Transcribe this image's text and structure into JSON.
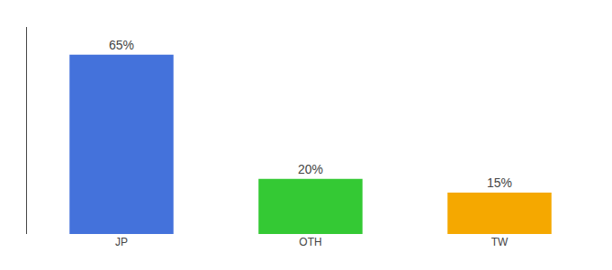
{
  "chart_data": {
    "type": "bar",
    "categories": [
      "JP",
      "OTH",
      "TW"
    ],
    "values": [
      65,
      20,
      15
    ],
    "value_labels": [
      "65%",
      "20%",
      "15%"
    ],
    "data_labels": true,
    "colors": [
      "#4472db",
      "#34c934",
      "#f5a800"
    ],
    "ylim": [
      0,
      75
    ],
    "tick_labels": "x",
    "grid": false
  }
}
